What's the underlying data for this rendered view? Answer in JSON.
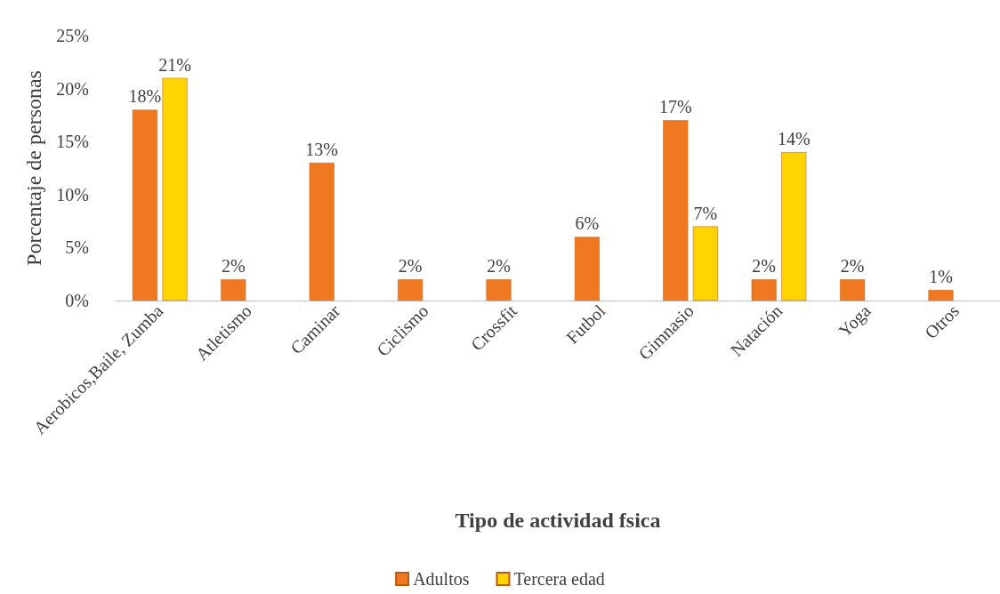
{
  "chart_data": {
    "type": "bar",
    "xlabel": "Tipo de actividad fsica",
    "ylabel": "Porcentaje de personas",
    "categories": [
      "Aerobicos,Baile, Zumba",
      "Atletismo",
      "Caminar",
      "Ciclismo",
      "Crossfit",
      "Futbol",
      "Gimnasio",
      "Natación",
      "Yoga",
      "Otros"
    ],
    "series": [
      {
        "name": "Adultos",
        "color": "#f07820",
        "values": [
          18,
          2,
          13,
          2,
          2,
          6,
          17,
          2,
          2,
          1
        ],
        "value_labels": [
          "18%",
          "2%",
          "13%",
          "2%",
          "2%",
          "6%",
          "17%",
          "2%",
          "2%",
          "1%"
        ]
      },
      {
        "name": "Tercera edad",
        "color": "#ffd400",
        "values": [
          21,
          null,
          null,
          null,
          null,
          null,
          7,
          14,
          null,
          null
        ],
        "value_labels": [
          "21%",
          null,
          null,
          null,
          null,
          null,
          "7%",
          "14%",
          null,
          null
        ]
      }
    ],
    "ylim": [
      0,
      25
    ],
    "yticks": [
      {
        "value": 0,
        "label": "0%"
      },
      {
        "value": 5,
        "label": "5%"
      },
      {
        "value": 10,
        "label": "10%"
      },
      {
        "value": 15,
        "label": "15%"
      },
      {
        "value": 20,
        "label": "20%"
      },
      {
        "value": 25,
        "label": "25%"
      }
    ],
    "grid": false,
    "legend": "bottom"
  }
}
